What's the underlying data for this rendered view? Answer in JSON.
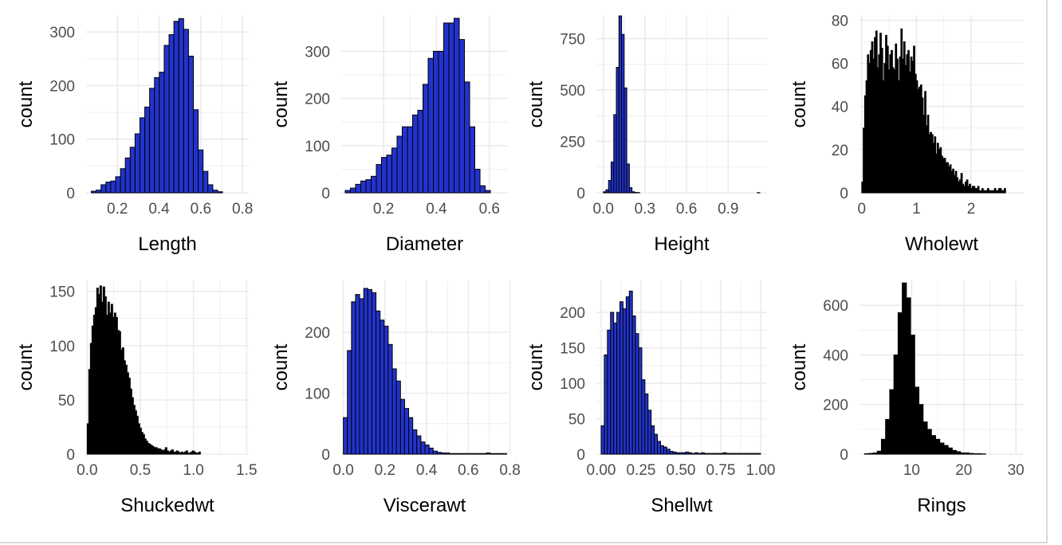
{
  "colors": {
    "fill_blue": "#2233cc",
    "fill_black": "#000000",
    "outline": "#000000",
    "grid": "#ebebeb",
    "tick_text": "#4d4d4d",
    "label_text": "#000000"
  },
  "chart_data": [
    {
      "type": "bar",
      "title": "",
      "xlabel": "Length",
      "ylabel": "count",
      "xlim": [
        0.05,
        0.83
      ],
      "ylim": [
        0,
        330
      ],
      "xticks": [
        0.2,
        0.4,
        0.6,
        0.8
      ],
      "xtick_labels": [
        "0.2",
        "0.4",
        "0.6",
        "0.8"
      ],
      "yticks": [
        0,
        100,
        200,
        300
      ],
      "ytick_labels": [
        "0",
        "100",
        "200",
        "300"
      ],
      "fill": "#2233cc",
      "bin_start": 0.075,
      "bin_width": 0.0233,
      "values": [
        3,
        5,
        15,
        20,
        22,
        30,
        45,
        65,
        85,
        110,
        140,
        160,
        195,
        215,
        225,
        275,
        295,
        320,
        325,
        305,
        255,
        155,
        80,
        40,
        15,
        5,
        2
      ]
    },
    {
      "type": "bar",
      "title": "",
      "xlabel": "Diameter",
      "ylabel": "count",
      "xlim": [
        0.04,
        0.67
      ],
      "ylim": [
        0,
        375
      ],
      "xticks": [
        0.2,
        0.4,
        0.6
      ],
      "xtick_labels": [
        "0.2",
        "0.4",
        "0.6"
      ],
      "yticks": [
        0,
        100,
        200,
        300
      ],
      "ytick_labels": [
        "0",
        "100",
        "200",
        "300"
      ],
      "fill": "#2233cc",
      "bin_start": 0.055,
      "bin_width": 0.0196,
      "values": [
        5,
        10,
        18,
        25,
        28,
        35,
        60,
        75,
        80,
        95,
        120,
        140,
        140,
        165,
        175,
        230,
        285,
        300,
        300,
        360,
        360,
        370,
        325,
        235,
        140,
        50,
        15,
        5
      ]
    },
    {
      "type": "bar",
      "title": "",
      "xlabel": "Height",
      "ylabel": "count",
      "xlim": [
        -0.05,
        1.18
      ],
      "ylim": [
        0,
        860
      ],
      "xticks": [
        0.0,
        0.3,
        0.6,
        0.9
      ],
      "xtick_labels": [
        "0.0",
        "0.3",
        "0.6",
        "0.9"
      ],
      "yticks": [
        0,
        250,
        500,
        750
      ],
      "ytick_labels": [
        "0",
        "250",
        "500",
        "750"
      ],
      "fill": "#2233cc",
      "bin_start": 0.0,
      "bin_width": 0.0188,
      "values": [
        5,
        15,
        60,
        150,
        380,
        610,
        860,
        770,
        510,
        140,
        25,
        5,
        2,
        1,
        0,
        0,
        0,
        0,
        0,
        0,
        0,
        0,
        0,
        0,
        0,
        0,
        0,
        0,
        0,
        0,
        0,
        0,
        0,
        0,
        0,
        0,
        0,
        0,
        0,
        0,
        0,
        0,
        0,
        0,
        0,
        0,
        0,
        0,
        0,
        0,
        0,
        0,
        0,
        0,
        0,
        0,
        0,
        0,
        0,
        1
      ]
    },
    {
      "type": "bar",
      "title": "",
      "xlabel": "Wholewt",
      "ylabel": "count",
      "xlim": [
        -0.04,
        2.96
      ],
      "ylim": [
        0,
        82
      ],
      "xticks": [
        0,
        1,
        2
      ],
      "xtick_labels": [
        "0",
        "1",
        "2"
      ],
      "yticks": [
        0,
        20,
        40,
        60,
        80
      ],
      "ytick_labels": [
        "0",
        "20",
        "40",
        "60",
        "80"
      ],
      "fill": "#000000",
      "bin_start": 0.002,
      "bin_width": 0.0255,
      "values": [
        5,
        30,
        45,
        52,
        64,
        60,
        66,
        70,
        62,
        72,
        75,
        58,
        64,
        74,
        67,
        52,
        60,
        73,
        68,
        57,
        64,
        66,
        58,
        57,
        69,
        62,
        52,
        63,
        76,
        62,
        70,
        59,
        64,
        66,
        56,
        63,
        61,
        68,
        55,
        52,
        48,
        49,
        50,
        44,
        36,
        47,
        31,
        36,
        27,
        28,
        27,
        23,
        26,
        18,
        23,
        20,
        21,
        17,
        16,
        16,
        14,
        14,
        12,
        13,
        10,
        11,
        8,
        10,
        7,
        5,
        6,
        9,
        4,
        3,
        5,
        6,
        3,
        4,
        2,
        3,
        3,
        2,
        2,
        3,
        1,
        1,
        2,
        1,
        1,
        1,
        2,
        1,
        1,
        1,
        1,
        2,
        1,
        1,
        2,
        2,
        1,
        1,
        2
      ]
    },
    {
      "type": "bar",
      "title": "",
      "xlabel": "Shuckedwt",
      "ylabel": "count",
      "xlim": [
        -0.01,
        1.52
      ],
      "ylim": [
        0,
        160
      ],
      "xticks": [
        0.0,
        0.5,
        1.0,
        1.5
      ],
      "xtick_labels": [
        "0.0",
        "0.5",
        "1.0",
        "1.5"
      ],
      "yticks": [
        0,
        50,
        100,
        150
      ],
      "ytick_labels": [
        "0",
        "50",
        "100",
        "150"
      ],
      "fill": "#000000",
      "bin_start": 0.0,
      "bin_width": 0.015,
      "values": [
        28,
        78,
        102,
        118,
        128,
        135,
        153,
        147,
        155,
        140,
        154,
        145,
        128,
        140,
        130,
        138,
        126,
        130,
        126,
        114,
        113,
        96,
        98,
        86,
        82,
        75,
        70,
        60,
        52,
        45,
        40,
        35,
        28,
        24,
        20,
        18,
        14,
        12,
        10,
        9,
        8,
        7,
        6,
        6,
        5,
        5,
        4,
        3,
        4,
        6,
        3,
        2,
        3,
        4,
        2,
        2,
        3,
        2,
        1,
        2,
        1,
        2,
        3,
        1,
        1,
        2,
        3,
        2,
        1,
        1,
        2
      ]
    },
    {
      "type": "bar",
      "title": "",
      "xlabel": "Viscerawt",
      "ylabel": "count",
      "xlim": [
        -0.01,
        0.79
      ],
      "ylim": [
        0,
        285
      ],
      "xticks": [
        0.0,
        0.2,
        0.4,
        0.6,
        0.8
      ],
      "xtick_labels": [
        "0.0",
        "0.2",
        "0.4",
        "0.6",
        "0.8"
      ],
      "yticks": [
        0,
        100,
        200
      ],
      "ytick_labels": [
        "0",
        "100",
        "200"
      ],
      "fill": "#2233cc",
      "bin_start": 0.0,
      "bin_width": 0.0196,
      "values": [
        60,
        170,
        250,
        262,
        255,
        272,
        270,
        265,
        235,
        220,
        210,
        180,
        140,
        120,
        90,
        75,
        60,
        40,
        30,
        20,
        15,
        10,
        5,
        3,
        2,
        2,
        1,
        1,
        1,
        1,
        1,
        1,
        1,
        1,
        1,
        2,
        1,
        1,
        1,
        1
      ]
    },
    {
      "type": "bar",
      "title": "",
      "xlabel": "Shellwt",
      "ylabel": "count",
      "xlim": [
        -0.03,
        1.04
      ],
      "ylim": [
        0,
        245
      ],
      "xticks": [
        0.0,
        0.25,
        0.5,
        0.75,
        1.0
      ],
      "xtick_labels": [
        "0.00",
        "0.25",
        "0.50",
        "0.75",
        "1.00"
      ],
      "yticks": [
        0,
        50,
        100,
        150,
        200
      ],
      "ytick_labels": [
        "0",
        "50",
        "100",
        "150",
        "200"
      ],
      "fill": "#2233cc",
      "bin_start": 0.0,
      "bin_width": 0.0196,
      "values": [
        40,
        140,
        175,
        200,
        185,
        200,
        215,
        205,
        222,
        230,
        195,
        170,
        150,
        105,
        85,
        62,
        40,
        28,
        18,
        12,
        10,
        7,
        4,
        3,
        2,
        2,
        2,
        3,
        2,
        1,
        2,
        1,
        2,
        1,
        1,
        1,
        1,
        1,
        1,
        2,
        1,
        1,
        1,
        1,
        1,
        1,
        1,
        1,
        1,
        1,
        1
      ]
    },
    {
      "type": "bar",
      "title": "",
      "xlabel": "Rings",
      "ylabel": "count",
      "xlim": [
        0.0,
        31.5
      ],
      "ylim": [
        0,
        700
      ],
      "xticks": [
        10,
        20,
        30
      ],
      "xtick_labels": [
        "10",
        "20",
        "30"
      ],
      "yticks": [
        0,
        200,
        400,
        600
      ],
      "ytick_labels": [
        "0",
        "200",
        "400",
        "600"
      ],
      "fill": "#000000",
      "bin_start": 1,
      "bin_width": 0.8,
      "values": [
        2,
        3,
        5,
        12,
        60,
        140,
        260,
        400,
        570,
        690,
        630,
        480,
        270,
        200,
        130,
        100,
        75,
        60,
        45,
        35,
        25,
        15,
        10,
        5,
        5,
        3,
        2,
        2,
        1
      ]
    }
  ]
}
